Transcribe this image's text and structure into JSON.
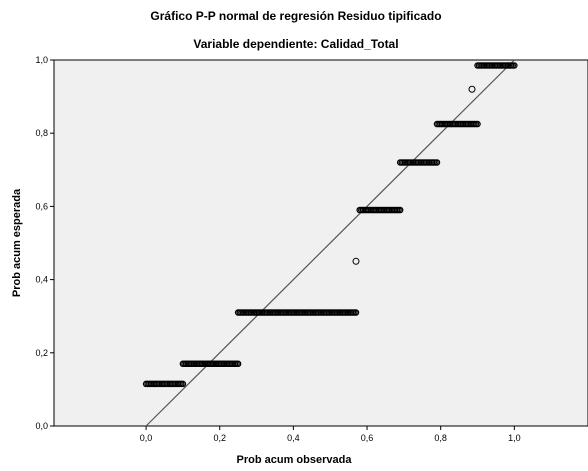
{
  "chart_data": {
    "type": "scatter",
    "title": "Gráfico P-P normal de regresión Residuo tipificado",
    "subtitle": "Variable dependiente: Calidad_Total",
    "xlabel": "Prob acum observada",
    "ylabel": "Prob acum esperada",
    "xlim": [
      -0.25,
      1.2
    ],
    "ylim": [
      0.0,
      1.0
    ],
    "x_ticks": [
      0.0,
      0.2,
      0.4,
      0.6,
      0.8,
      1.0
    ],
    "x_tick_labels": [
      "0,0",
      "0,2",
      "0,4",
      "0,6",
      "0,8",
      "1,0"
    ],
    "y_ticks": [
      0.0,
      0.2,
      0.4,
      0.6,
      0.8,
      1.0
    ],
    "y_tick_labels": [
      "0,0",
      "0,2",
      "0,4",
      "0,6",
      "0,8",
      "1,0"
    ],
    "reference_line": [
      [
        0.0,
        0.0
      ],
      [
        1.0,
        1.0
      ]
    ],
    "grid": false,
    "plot_background": "#f0f0f0",
    "point_color": "#000000",
    "point_clusters": [
      {
        "x_start": 0.0,
        "x_end": 0.1,
        "y": 0.115
      },
      {
        "x_start": 0.1,
        "x_end": 0.25,
        "y": 0.17
      },
      {
        "x_start": 0.25,
        "x_end": 0.57,
        "y": 0.31
      },
      {
        "x_start": 0.58,
        "x_end": 0.69,
        "y": 0.59
      },
      {
        "x_start": 0.69,
        "x_end": 0.79,
        "y": 0.72
      },
      {
        "x_start": 0.79,
        "x_end": 0.9,
        "y": 0.825
      },
      {
        "x_start": 0.9,
        "x_end": 1.0,
        "y": 0.985
      }
    ],
    "isolated_points": [
      {
        "x": 0.57,
        "y": 0.45
      },
      {
        "x": 0.885,
        "y": 0.92
      }
    ]
  }
}
